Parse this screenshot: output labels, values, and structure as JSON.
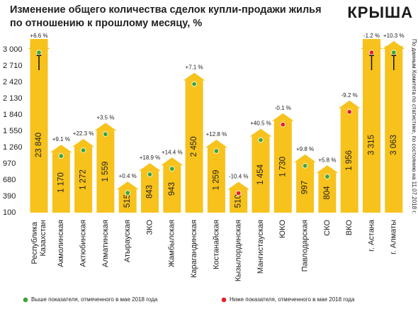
{
  "chart_data": {
    "type": "bar",
    "title": [
      "Изменение общего количества сделок купли-продажи жилья",
      "по отношению к прошлому месяцу, %"
    ],
    "logo": "КРЫША",
    "source_note": "По данным Комитета по статистике, по состоянию на 11.07.2018 г.",
    "categories": [
      "Республика Казахстан",
      "Акмолинская",
      "Актюбинская",
      "Алматинская",
      "Атырауская",
      "ЗКО",
      "Жамбылская",
      "Карагандинская",
      "Костанайская",
      "Кызылординская",
      "Мангистауская",
      "ЮКО",
      "Павлодарская",
      "СКО",
      "ВКО",
      "г. Астана",
      "г. Алматы"
    ],
    "values": [
      23840,
      1170,
      1272,
      1559,
      515,
      843,
      943,
      2450,
      1259,
      510,
      1454,
      1730,
      997,
      804,
      1956,
      3315,
      3063
    ],
    "value_labels": [
      "23 840",
      "1 170",
      "1 272",
      "1 559",
      "515",
      "843",
      "943",
      "2 450",
      "1 259",
      "510",
      "1 454",
      "1 730",
      "997",
      "804",
      "1 956",
      "3 315",
      "3 063"
    ],
    "changes": [
      6.6,
      9.1,
      22.3,
      3.5,
      0.4,
      18.9,
      14.4,
      7.1,
      12.8,
      -10.4,
      40.5,
      -0.1,
      9.8,
      5.8,
      -9.2,
      -1.2,
      10.3
    ],
    "change_labels": [
      "+6.6 %",
      "+9.1 %",
      "+22.3 %",
      "+3.5 %",
      "+0.4 %",
      "+18.9 %",
      "+14.4 %",
      "+7.1 %",
      "+12.8 %",
      "-10.4 %",
      "+40.5 %",
      "-0.1 %",
      "+9.8 %",
      "+5.8 %",
      "-9.2 %",
      "-1.2 %",
      "+10.3 %"
    ],
    "markers": [
      0,
      0,
      0,
      0,
      0,
      0,
      0,
      0,
      0,
      1,
      0,
      1,
      0,
      0,
      1,
      1,
      0
    ],
    "legend": [
      {
        "name": "Выше показателя, отмеченного в мае 2018 года",
        "color": "#3aa635"
      },
      {
        "name": "Ниже показателя, отмеченного в мае 2018 года",
        "color": "#e4202b"
      }
    ],
    "color": "#f7c21c",
    "ylim": [
      100,
      3000
    ],
    "yticks": [
      {
        "value": 3000,
        "label": "3 000"
      },
      {
        "value": 2710,
        "label": "2 710"
      },
      {
        "value": 2420,
        "label": "2 420"
      },
      {
        "value": 2130,
        "label": "2 130"
      },
      {
        "value": 1840,
        "label": "1 840"
      },
      {
        "value": 1550,
        "label": "1 550"
      },
      {
        "value": 1260,
        "label": "1 260"
      },
      970,
      680,
      390,
      100
    ]
  }
}
